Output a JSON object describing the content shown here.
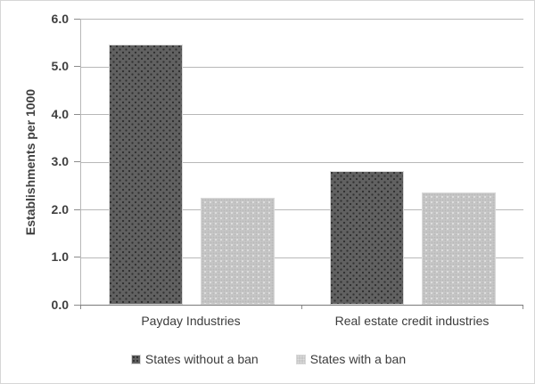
{
  "window": {
    "background": "#ffffff",
    "border_color": "#d6d6d6"
  },
  "chart_data": {
    "type": "bar",
    "title": "",
    "xlabel": "",
    "ylabel": "Establishments per 1000",
    "categories": [
      "Payday Industries",
      "Real estate credit industries"
    ],
    "series": [
      {
        "name": "States without a ban",
        "values": [
          5.45,
          2.8
        ],
        "color": "#616161",
        "pattern": "dark-dots"
      },
      {
        "name": "States with a ban",
        "values": [
          2.25,
          2.35
        ],
        "color": "#c6c6c6",
        "pattern": "light-dots"
      }
    ],
    "ylim": [
      0,
      6
    ],
    "ytick_step": 1.0,
    "ytick_labels": [
      "0.0",
      "1.0",
      "2.0",
      "3.0",
      "4.0",
      "5.0",
      "6.0"
    ],
    "grid": true,
    "legend_position": "bottom",
    "gridline_color": "#b8b8b8",
    "axis_color": "#7a7a7a",
    "text_color": "#3c3c3c"
  }
}
